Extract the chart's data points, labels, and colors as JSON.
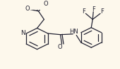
{
  "bg_color": "#fdf8ec",
  "bond_color": "#222233",
  "text_color": "#222233",
  "figsize": [
    1.7,
    0.99
  ],
  "dpi": 100,
  "lw": 0.9,
  "xlim": [
    0,
    170
  ],
  "ylim": [
    0,
    99
  ]
}
